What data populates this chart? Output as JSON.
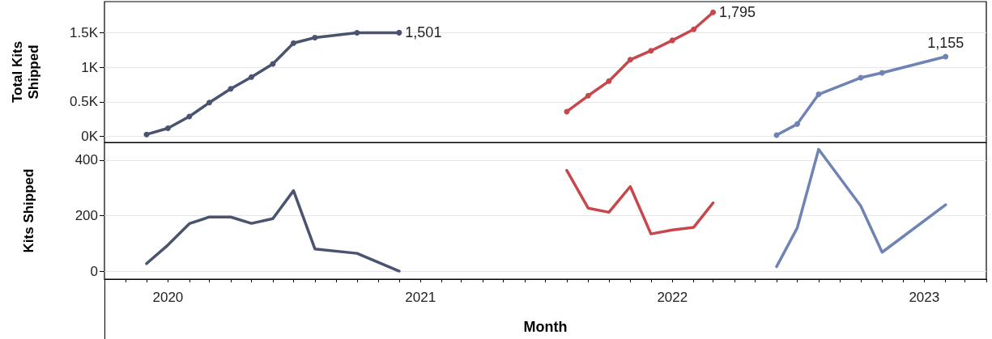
{
  "chart_data": [
    {
      "type": "line",
      "ylabel": "Total Kits Shipped",
      "marker": "circle",
      "grid": "y",
      "tick_labels": "y",
      "xlim": [
        "2019-10",
        "2023-04"
      ],
      "ylim": [
        -85,
        1950
      ],
      "yticks": [
        {
          "value": 0,
          "label": "0K"
        },
        {
          "value": 500,
          "label": "0.5K"
        },
        {
          "value": 1000,
          "label": "1K"
        },
        {
          "value": 1500,
          "label": "1.5K"
        }
      ],
      "series": [
        {
          "color": "#4a5470",
          "x": [
            "2019-12",
            "2020-01",
            "2020-02",
            "2020-03",
            "2020-04",
            "2020-05",
            "2020-06",
            "2020-07",
            "2020-08",
            "2020-10",
            "2020-12"
          ],
          "values": [
            30,
            120,
            290,
            490,
            690,
            860,
            1050,
            1350,
            1430,
            1500,
            1501
          ],
          "value_labels": [
            null,
            null,
            null,
            null,
            null,
            null,
            null,
            null,
            null,
            null,
            "1,501"
          ]
        },
        {
          "color": "#c8474c",
          "x": [
            "2021-08",
            "2021-09",
            "2021-10",
            "2021-11",
            "2021-12",
            "2022-01",
            "2022-02",
            "2022-03"
          ],
          "values": [
            360,
            590,
            800,
            1110,
            1240,
            1390,
            1550,
            1795
          ],
          "value_labels": [
            null,
            null,
            null,
            null,
            null,
            null,
            null,
            "1,795"
          ]
        },
        {
          "color": "#6f84b5",
          "x": [
            "2022-06",
            "2022-07",
            "2022-08",
            "2022-10",
            "2022-11",
            "2023-02"
          ],
          "values": [
            20,
            180,
            610,
            850,
            920,
            1155
          ],
          "value_labels": [
            null,
            null,
            null,
            null,
            null,
            "1,155"
          ]
        }
      ]
    },
    {
      "type": "line",
      "xlabel": "Month",
      "ylabel": "Kits Shipped",
      "grid": "y",
      "xlim": [
        "2019-10",
        "2023-04"
      ],
      "xticks": [
        {
          "value": "2019-10",
          "label": null
        },
        {
          "value": "2019-11",
          "label": null
        },
        {
          "value": "2019-12",
          "label": null
        },
        {
          "value": "2020-01",
          "label": "2020"
        },
        {
          "value": "2020-02",
          "label": null
        },
        {
          "value": "2020-03",
          "label": null
        },
        {
          "value": "2020-04",
          "label": null
        },
        {
          "value": "2020-05",
          "label": null
        },
        {
          "value": "2020-06",
          "label": null
        },
        {
          "value": "2020-07",
          "label": null
        },
        {
          "value": "2020-08",
          "label": null
        },
        {
          "value": "2020-09",
          "label": null
        },
        {
          "value": "2020-10",
          "label": null
        },
        {
          "value": "2020-11",
          "label": null
        },
        {
          "value": "2020-12",
          "label": null
        },
        {
          "value": "2021-01",
          "label": "2021"
        },
        {
          "value": "2021-02",
          "label": null
        },
        {
          "value": "2021-03",
          "label": null
        },
        {
          "value": "2021-04",
          "label": null
        },
        {
          "value": "2021-05",
          "label": null
        },
        {
          "value": "2021-06",
          "label": null
        },
        {
          "value": "2021-07",
          "label": null
        },
        {
          "value": "2021-08",
          "label": null
        },
        {
          "value": "2021-09",
          "label": null
        },
        {
          "value": "2021-10",
          "label": null
        },
        {
          "value": "2021-11",
          "label": null
        },
        {
          "value": "2021-12",
          "label": null
        },
        {
          "value": "2022-01",
          "label": "2022"
        },
        {
          "value": "2022-02",
          "label": null
        },
        {
          "value": "2022-03",
          "label": null
        },
        {
          "value": "2022-04",
          "label": null
        },
        {
          "value": "2022-05",
          "label": null
        },
        {
          "value": "2022-06",
          "label": null
        },
        {
          "value": "2022-07",
          "label": null
        },
        {
          "value": "2022-08",
          "label": null
        },
        {
          "value": "2022-09",
          "label": null
        },
        {
          "value": "2022-10",
          "label": null
        },
        {
          "value": "2022-11",
          "label": null
        },
        {
          "value": "2022-12",
          "label": null
        },
        {
          "value": "2023-01",
          "label": "2023"
        },
        {
          "value": "2023-02",
          "label": null
        },
        {
          "value": "2023-03",
          "label": null
        },
        {
          "value": "2023-04",
          "label": null
        }
      ],
      "ylim": [
        -29,
        464
      ],
      "yticks": [
        0,
        200,
        400
      ],
      "series": [
        {
          "color": "#4a5470",
          "x": [
            "2019-12",
            "2020-01",
            "2020-02",
            "2020-03",
            "2020-04",
            "2020-05",
            "2020-06",
            "2020-07",
            "2020-08",
            "2020-10",
            "2020-12"
          ],
          "values": [
            27,
            94,
            171,
            195,
            195,
            172,
            189,
            290,
            80,
            64,
            0
          ]
        },
        {
          "color": "#c8474c",
          "x": [
            "2021-08",
            "2021-09",
            "2021-10",
            "2021-11",
            "2021-12",
            "2022-01",
            "2022-02",
            "2022-03"
          ],
          "values": [
            363,
            227,
            212,
            305,
            134,
            148,
            158,
            246
          ]
        },
        {
          "color": "#6f84b5",
          "x": [
            "2022-06",
            "2022-07",
            "2022-08",
            "2022-10",
            "2022-11",
            "2023-02"
          ],
          "values": [
            16,
            156,
            439,
            235,
            68,
            239
          ]
        }
      ]
    }
  ]
}
